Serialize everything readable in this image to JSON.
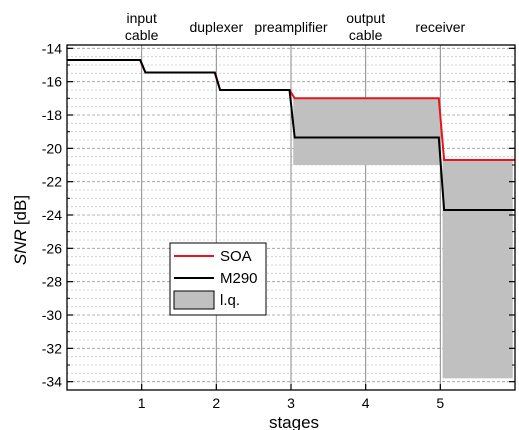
{
  "chart_data": {
    "type": "line",
    "xlabel": "stages",
    "ylabel": "SNR [dB]",
    "ylabel_italic_part": "SNR",
    "ylabel_unit_part": "[dB]",
    "xlim": [
      0,
      6
    ],
    "ylim": [
      -34.5,
      -13.8
    ],
    "x_ticks": [
      1,
      2,
      3,
      4,
      5
    ],
    "y_ticks": [
      -14,
      -16,
      -18,
      -20,
      -22,
      -24,
      -26,
      -28,
      -30,
      -32,
      -34
    ],
    "y_minor_step": 0.5,
    "grid": true,
    "stage_labels": [
      {
        "x": 1,
        "lines": [
          "input",
          "cable"
        ]
      },
      {
        "x": 2,
        "lines": [
          "duplexer"
        ]
      },
      {
        "x": 3,
        "lines": [
          "preamplifier"
        ]
      },
      {
        "x": 4,
        "lines": [
          "output",
          "cable"
        ]
      },
      {
        "x": 5,
        "lines": [
          "receiver"
        ]
      }
    ],
    "series": [
      {
        "name": "SOA",
        "color": "#e8141a",
        "points": [
          [
            0,
            -14.7
          ],
          [
            0.98,
            -14.7
          ],
          [
            1.05,
            -15.45
          ],
          [
            1.98,
            -15.45
          ],
          [
            2.05,
            -16.5
          ],
          [
            2.98,
            -16.5
          ],
          [
            3.05,
            -17.0
          ],
          [
            4.98,
            -17.0
          ],
          [
            5.05,
            -20.7
          ],
          [
            6,
            -20.7
          ]
        ]
      },
      {
        "name": "M290",
        "color": "#000000",
        "points": [
          [
            0,
            -14.7
          ],
          [
            0.98,
            -14.7
          ],
          [
            1.05,
            -15.45
          ],
          [
            1.98,
            -15.45
          ],
          [
            2.05,
            -16.5
          ],
          [
            2.98,
            -16.5
          ],
          [
            3.05,
            -19.35
          ],
          [
            4.98,
            -19.35
          ],
          [
            5.05,
            -23.7
          ],
          [
            6,
            -23.7
          ]
        ]
      }
    ],
    "bands": [
      {
        "name": "l.q.",
        "color": "#c0c0c0",
        "x": [
          3.03,
          5.0
        ],
        "y": [
          -21.0,
          -16.95
        ]
      },
      {
        "name": "l.q.",
        "color": "#c0c0c0",
        "x": [
          5.03,
          5.97
        ],
        "y": [
          -33.8,
          -20.65
        ]
      }
    ],
    "legend": {
      "placement": "center-left",
      "entries": [
        {
          "label": "SOA",
          "kind": "line",
          "color": "#e8141a"
        },
        {
          "label": "M290",
          "kind": "line",
          "color": "#000000"
        },
        {
          "label": "l.q.",
          "kind": "patch",
          "color": "#c0c0c0"
        }
      ]
    }
  }
}
